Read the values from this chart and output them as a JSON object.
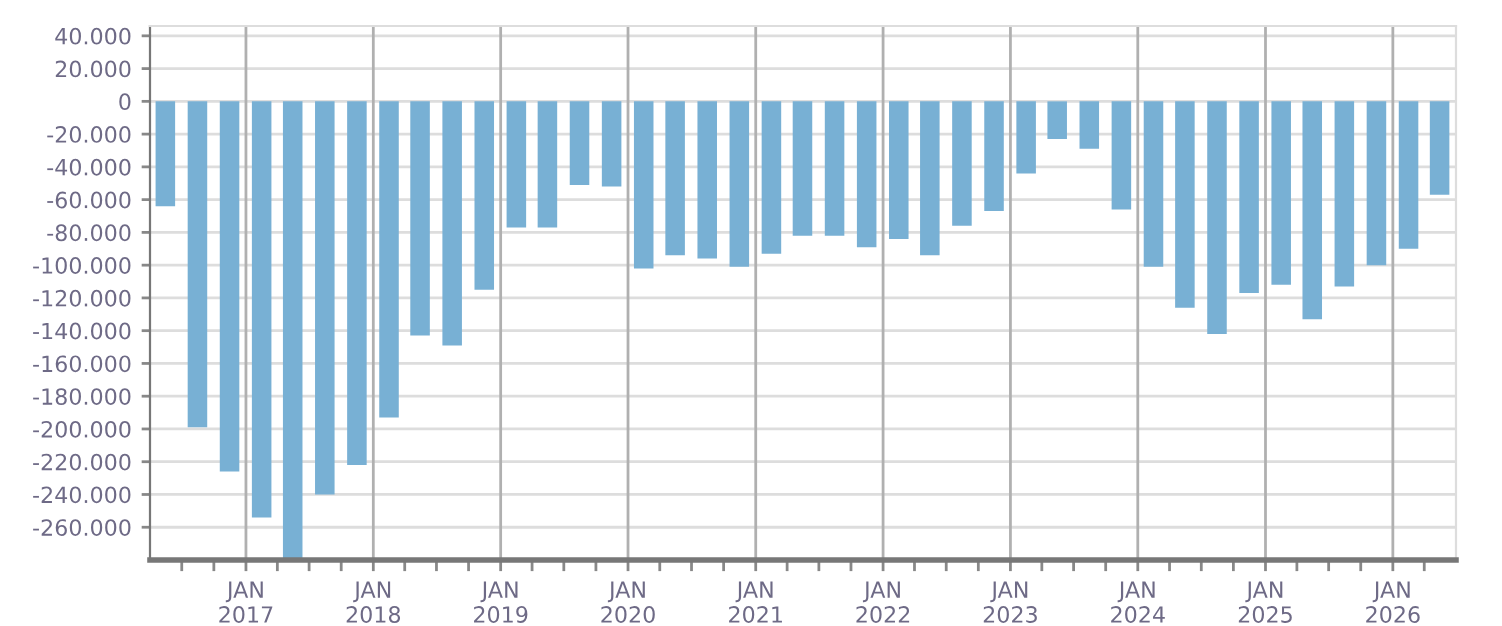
{
  "chart_data": {
    "type": "bar",
    "x": [
      "2016-05-15",
      "2016-08-15",
      "2016-11-15",
      "2017-02-15",
      "2017-05-15",
      "2017-08-15",
      "2017-11-15",
      "2018-02-15",
      "2018-05-15",
      "2018-08-15",
      "2018-11-15",
      "2019-02-15",
      "2019-05-15",
      "2019-08-15",
      "2019-11-15",
      "2020-02-15",
      "2020-05-15",
      "2020-08-15",
      "2020-11-15",
      "2021-02-15",
      "2021-05-15",
      "2021-08-15",
      "2021-11-15",
      "2022-02-15",
      "2022-05-15",
      "2022-08-15",
      "2022-11-15",
      "2023-02-15",
      "2023-05-15",
      "2023-08-15",
      "2023-11-15",
      "2024-02-15",
      "2024-05-15",
      "2024-08-15",
      "2024-11-15",
      "2025-02-15",
      "2025-05-15",
      "2025-08-15",
      "2025-11-15",
      "2026-02-15",
      "2026-05-15"
    ],
    "values": [
      -64000,
      -199000,
      -226000,
      -254000,
      -280000,
      -240000,
      -222000,
      -193000,
      -143000,
      -149000,
      -115000,
      -77000,
      -77000,
      -51000,
      -52000,
      -102000,
      -94000,
      -96000,
      -101000,
      -93000,
      -82000,
      -82000,
      -89000,
      -84000,
      -94000,
      -76000,
      -67000,
      -44000,
      -23000,
      -29000,
      -66000,
      -101000,
      -126000,
      -142000,
      -117000,
      -112000,
      -133000,
      -113000,
      -100000,
      -90000,
      -57000
    ],
    "color": "#78b0d4",
    "ylim": [
      -280000,
      46000
    ],
    "yticks": [
      {
        "value": 40000,
        "label": "40.000"
      },
      {
        "value": 20000,
        "label": "20.000"
      },
      0,
      {
        "value": -20000,
        "label": "-20.000"
      },
      {
        "value": -40000,
        "label": "-40.000"
      },
      {
        "value": -60000,
        "label": "-60.000"
      },
      {
        "value": -80000,
        "label": "-80.000"
      },
      {
        "value": -100000,
        "label": "-100.000"
      },
      {
        "value": -120000,
        "label": "-120.000"
      },
      {
        "value": -140000,
        "label": "-140.000"
      },
      {
        "value": -160000,
        "label": "-160.000"
      },
      {
        "value": -180000,
        "label": "-180.000"
      },
      {
        "value": -200000,
        "label": "-200.000"
      },
      {
        "value": -220000,
        "label": "-220.000"
      },
      {
        "value": -240000,
        "label": "-240.000"
      },
      {
        "value": -260000,
        "label": "-260.000"
      }
    ],
    "xlim": [
      "2016-04-01",
      "2026-07-01"
    ],
    "xticks": [
      {
        "value": "2016-07-01",
        "label": null
      },
      {
        "value": "2016-10-01",
        "label": null
      },
      {
        "value": "2017-01-01",
        "label": "JAN\n2017"
      },
      {
        "value": "2017-04-01",
        "label": null
      },
      {
        "value": "2017-07-01",
        "label": null
      },
      {
        "value": "2017-10-01",
        "label": null
      },
      {
        "value": "2018-01-01",
        "label": "JAN\n2018"
      },
      {
        "value": "2018-04-01",
        "label": null
      },
      {
        "value": "2018-07-01",
        "label": null
      },
      {
        "value": "2018-10-01",
        "label": null
      },
      {
        "value": "2019-01-01",
        "label": "JAN\n2019"
      },
      {
        "value": "2019-04-01",
        "label": null
      },
      {
        "value": "2019-07-01",
        "label": null
      },
      {
        "value": "2019-10-01",
        "label": null
      },
      {
        "value": "2020-01-01",
        "label": "JAN\n2020"
      },
      {
        "value": "2020-04-01",
        "label": null
      },
      {
        "value": "2020-07-01",
        "label": null
      },
      {
        "value": "2020-10-01",
        "label": null
      },
      {
        "value": "2021-01-01",
        "label": "JAN\n2021"
      },
      {
        "value": "2021-04-01",
        "label": null
      },
      {
        "value": "2021-07-01",
        "label": null
      },
      {
        "value": "2021-10-01",
        "label": null
      },
      {
        "value": "2022-01-01",
        "label": "JAN\n2022"
      },
      {
        "value": "2022-04-01",
        "label": null
      },
      {
        "value": "2022-07-01",
        "label": null
      },
      {
        "value": "2022-10-01",
        "label": null
      },
      {
        "value": "2023-01-01",
        "label": "JAN\n2023"
      },
      {
        "value": "2023-04-01",
        "label": null
      },
      {
        "value": "2023-07-01",
        "label": null
      },
      {
        "value": "2023-10-01",
        "label": null
      },
      {
        "value": "2024-01-01",
        "label": "JAN\n2024"
      },
      {
        "value": "2024-04-01",
        "label": null
      },
      {
        "value": "2024-07-01",
        "label": null
      },
      {
        "value": "2024-10-01",
        "label": null
      },
      {
        "value": "2025-01-01",
        "label": "JAN\n2025"
      },
      {
        "value": "2025-04-01",
        "label": null
      },
      {
        "value": "2025-07-01",
        "label": null
      },
      {
        "value": "2025-10-01",
        "label": null
      },
      {
        "value": "2026-01-01",
        "label": "JAN\n2026"
      },
      {
        "value": "2026-04-01",
        "label": null
      }
    ],
    "grid": true
  }
}
